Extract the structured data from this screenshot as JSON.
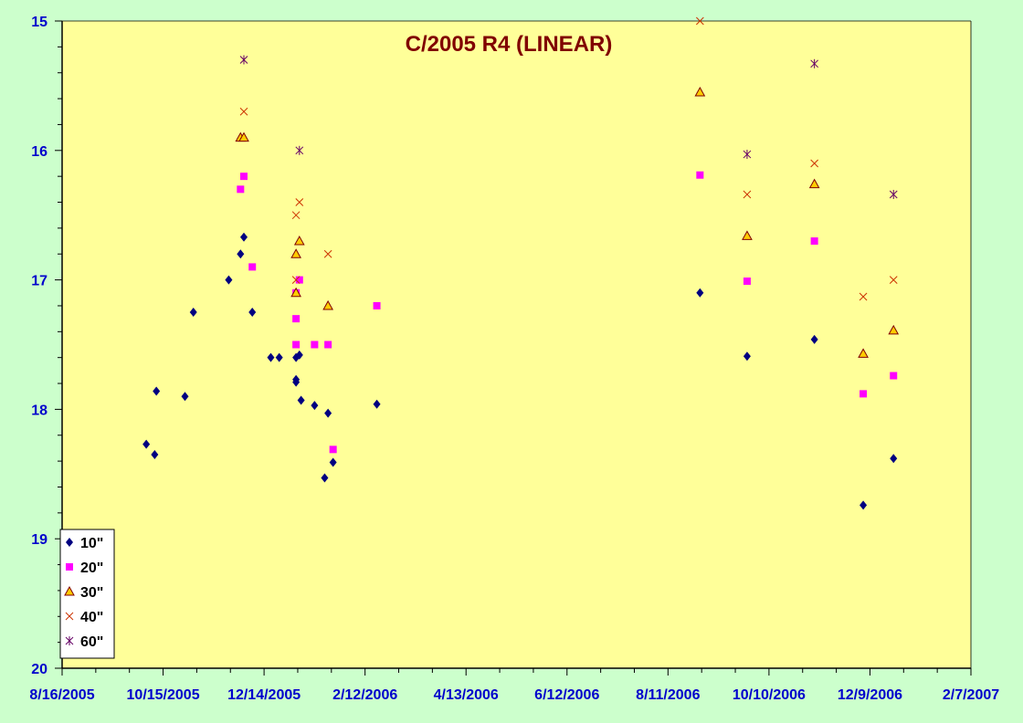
{
  "chart_data": {
    "type": "scatter",
    "title": "C/2005 R4 (LINEAR)",
    "xlabel": "",
    "ylabel": "",
    "x_axis": {
      "type": "date",
      "min": "2005-08-16",
      "max": "2007-02-07",
      "tick_labels": [
        "8/16/2005",
        "10/15/2005",
        "12/14/2005",
        "2/12/2006",
        "4/13/2006",
        "6/12/2006",
        "8/11/2006",
        "10/10/2006",
        "12/9/2006",
        "2/7/2007"
      ],
      "tick_dates": [
        "2005-08-16",
        "2005-10-15",
        "2005-12-14",
        "2006-02-12",
        "2006-04-13",
        "2006-06-12",
        "2006-08-11",
        "2006-10-10",
        "2006-12-09",
        "2007-02-07"
      ],
      "minor_tick_interval_days": 20
    },
    "y_axis": {
      "reversed": true,
      "min": 15,
      "max": 20,
      "tick_labels": [
        "15",
        "16",
        "17",
        "18",
        "19",
        "20"
      ],
      "tick_values": [
        15,
        16,
        17,
        18,
        19,
        20
      ],
      "minor_tick_interval": 0.2
    },
    "grid": false,
    "plot_background": "#ffff99",
    "page_background": "#ccffcc",
    "legend_position": "bottom-left",
    "series": [
      {
        "name": "10\"",
        "marker": "diamond",
        "color": "#000080",
        "points": [
          {
            "x": "2005-10-05",
            "y": 18.27
          },
          {
            "x": "2005-10-10",
            "y": 18.35
          },
          {
            "x": "2005-10-11",
            "y": 17.86
          },
          {
            "x": "2005-10-28",
            "y": 17.9
          },
          {
            "x": "2005-11-02",
            "y": 17.25
          },
          {
            "x": "2005-11-23",
            "y": 17.0
          },
          {
            "x": "2005-11-30",
            "y": 16.8
          },
          {
            "x": "2005-12-02",
            "y": 16.67
          },
          {
            "x": "2005-12-07",
            "y": 17.25
          },
          {
            "x": "2005-12-18",
            "y": 17.6
          },
          {
            "x": "2005-12-23",
            "y": 17.6
          },
          {
            "x": "2006-01-02",
            "y": 17.6
          },
          {
            "x": "2006-01-02",
            "y": 17.77
          },
          {
            "x": "2006-01-02",
            "y": 17.79
          },
          {
            "x": "2006-01-04",
            "y": 17.58
          },
          {
            "x": "2006-01-05",
            "y": 17.93
          },
          {
            "x": "2006-01-13",
            "y": 17.97
          },
          {
            "x": "2006-01-19",
            "y": 18.53
          },
          {
            "x": "2006-01-21",
            "y": 18.03
          },
          {
            "x": "2006-01-24",
            "y": 18.41
          },
          {
            "x": "2006-02-19",
            "y": 17.96
          },
          {
            "x": "2006-08-30",
            "y": 17.1
          },
          {
            "x": "2006-09-27",
            "y": 17.59
          },
          {
            "x": "2006-11-06",
            "y": 17.46
          },
          {
            "x": "2006-12-05",
            "y": 18.74
          },
          {
            "x": "2006-12-23",
            "y": 18.38
          }
        ]
      },
      {
        "name": "20\"",
        "marker": "square",
        "color": "#ff00ff",
        "points": [
          {
            "x": "2005-11-30",
            "y": 16.3
          },
          {
            "x": "2005-12-02",
            "y": 16.2
          },
          {
            "x": "2005-12-07",
            "y": 16.9
          },
          {
            "x": "2006-01-02",
            "y": 17.1
          },
          {
            "x": "2006-01-02",
            "y": 17.3
          },
          {
            "x": "2006-01-02",
            "y": 17.5
          },
          {
            "x": "2006-01-04",
            "y": 17.0
          },
          {
            "x": "2006-01-13",
            "y": 17.5
          },
          {
            "x": "2006-01-21",
            "y": 17.5
          },
          {
            "x": "2006-01-24",
            "y": 18.31
          },
          {
            "x": "2006-02-19",
            "y": 17.2
          },
          {
            "x": "2006-08-30",
            "y": 16.19
          },
          {
            "x": "2006-09-27",
            "y": 17.01
          },
          {
            "x": "2006-11-06",
            "y": 16.7
          },
          {
            "x": "2006-12-05",
            "y": 17.88
          },
          {
            "x": "2006-12-23",
            "y": 17.74
          }
        ]
      },
      {
        "name": "30\"",
        "marker": "triangle",
        "color": "#ffcc00",
        "stroke": "#800000",
        "points": [
          {
            "x": "2005-11-30",
            "y": 15.9
          },
          {
            "x": "2005-12-02",
            "y": 15.9
          },
          {
            "x": "2006-01-02",
            "y": 16.8
          },
          {
            "x": "2006-01-02",
            "y": 17.1
          },
          {
            "x": "2006-01-04",
            "y": 16.7
          },
          {
            "x": "2006-01-21",
            "y": 17.2
          },
          {
            "x": "2006-08-30",
            "y": 15.55
          },
          {
            "x": "2006-09-27",
            "y": 16.66
          },
          {
            "x": "2006-11-06",
            "y": 16.26
          },
          {
            "x": "2006-12-05",
            "y": 17.57
          },
          {
            "x": "2006-12-23",
            "y": 17.39
          }
        ]
      },
      {
        "name": "40\"",
        "marker": "x",
        "color": "#cc3300",
        "points": [
          {
            "x": "2005-12-02",
            "y": 15.7
          },
          {
            "x": "2006-01-02",
            "y": 16.5
          },
          {
            "x": "2006-01-02",
            "y": 17.0
          },
          {
            "x": "2006-01-04",
            "y": 16.4
          },
          {
            "x": "2006-01-21",
            "y": 16.8
          },
          {
            "x": "2006-08-30",
            "y": 15.0
          },
          {
            "x": "2006-09-27",
            "y": 16.34
          },
          {
            "x": "2006-11-06",
            "y": 16.1
          },
          {
            "x": "2006-12-05",
            "y": 17.13
          },
          {
            "x": "2006-12-23",
            "y": 17.0
          }
        ]
      },
      {
        "name": "60\"",
        "marker": "asterisk",
        "color": "#660066",
        "points": [
          {
            "x": "2005-12-02",
            "y": 15.3
          },
          {
            "x": "2006-01-04",
            "y": 16.0
          },
          {
            "x": "2006-09-27",
            "y": 16.03
          },
          {
            "x": "2006-11-06",
            "y": 15.33
          },
          {
            "x": "2006-12-23",
            "y": 16.34
          }
        ]
      }
    ]
  }
}
